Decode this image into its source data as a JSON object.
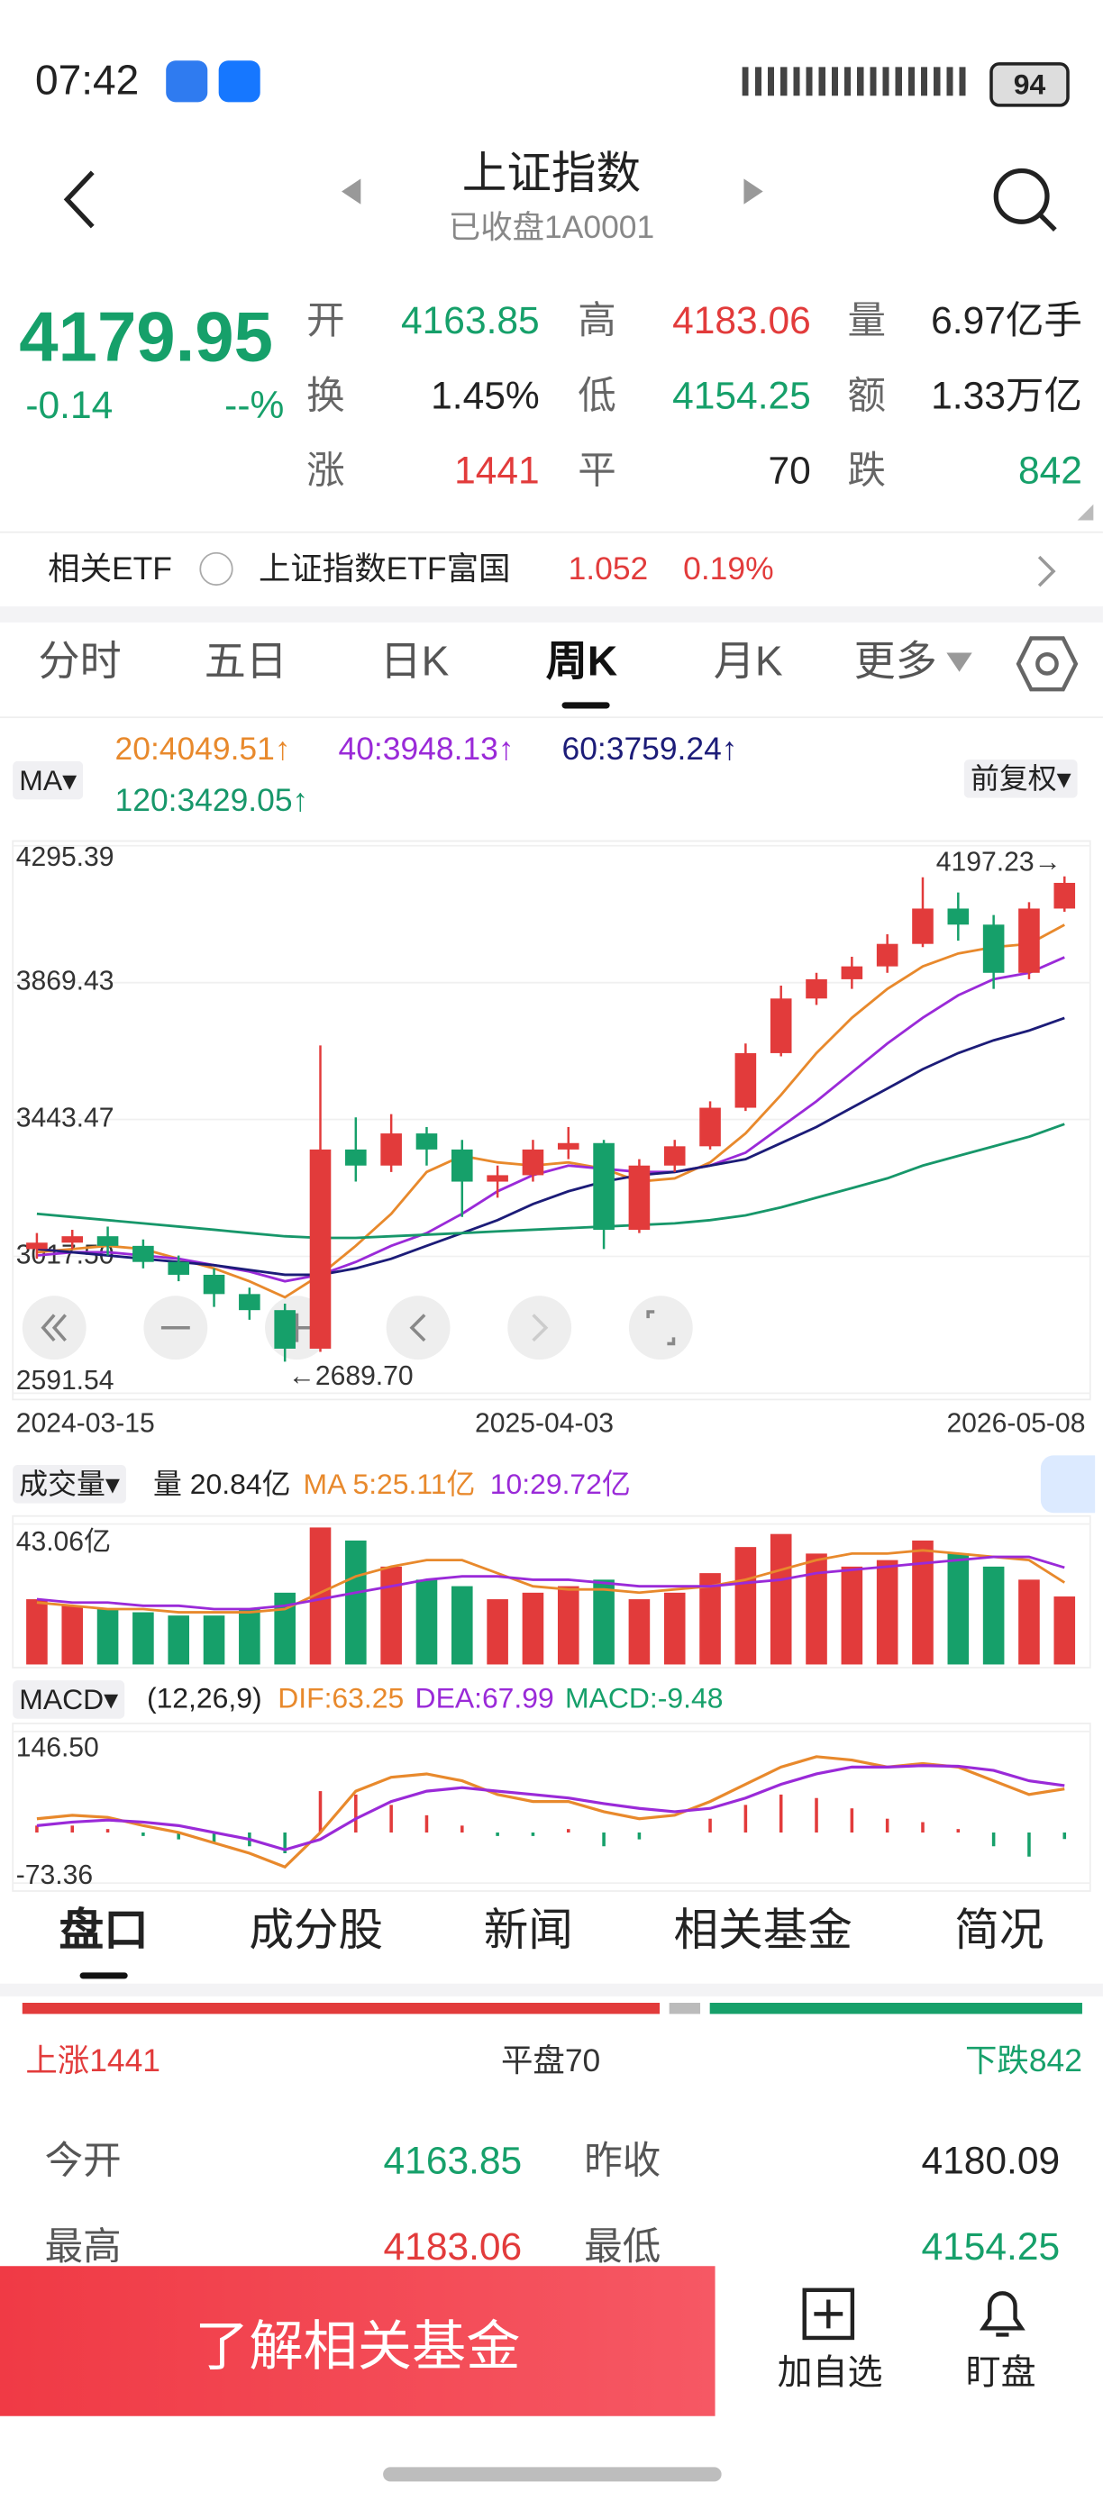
{
  "status": {
    "time": "07:42",
    "battery": "94"
  },
  "header": {
    "title": "上证指数",
    "subtitle": "已收盘1A0001"
  },
  "quote": {
    "price": "4179.95",
    "change": "-0.14",
    "change_pct": "--%",
    "stats": [
      {
        "label": "开",
        "value": "4163.85"
      },
      {
        "label": "高",
        "value": "4183.06"
      },
      {
        "label": "量",
        "value": "6.97亿手"
      },
      {
        "label": "换",
        "value": "1.45%"
      },
      {
        "label": "低",
        "value": "4154.25"
      },
      {
        "label": "额",
        "value": "1.33万亿"
      },
      {
        "label": "涨",
        "value": "1441"
      },
      {
        "label": "平",
        "value": "70"
      },
      {
        "label": "跌",
        "value": "842"
      }
    ]
  },
  "etf": {
    "label": "相关ETF",
    "name": "上证指数ETF富国",
    "price": "1.052",
    "pct": "0.19%"
  },
  "tabs": [
    "分时",
    "五日",
    "日K",
    "周K",
    "月K",
    "更多"
  ],
  "chart_data": {
    "type": "candlestick",
    "ma_selector": "MA",
    "adjust": "前复权",
    "up_color": "#e23b3b",
    "down_color": "#16a06a",
    "open": [
      3040,
      3060,
      3080,
      3050,
      3000,
      2960,
      2900,
      2850,
      2730,
      3350,
      3300,
      3400,
      3350,
      3250,
      3270,
      3350,
      3370,
      3100,
      3300,
      3360,
      3480,
      3650,
      3820,
      3880,
      3920,
      3990,
      4100,
      4050,
      3900,
      4100
    ],
    "close": [
      3060,
      3080,
      3050,
      3000,
      2960,
      2900,
      2850,
      2730,
      3350,
      3300,
      3400,
      3350,
      3250,
      3270,
      3350,
      3370,
      3100,
      3300,
      3360,
      3480,
      3650,
      3820,
      3880,
      3920,
      3990,
      4100,
      4050,
      3900,
      4100,
      4179.95
    ],
    "high": [
      3090,
      3100,
      3110,
      3070,
      3020,
      2980,
      2920,
      2870,
      3674,
      3450,
      3460,
      3420,
      3380,
      3300,
      3380,
      3420,
      3380,
      3320,
      3380,
      3500,
      3680,
      3860,
      3900,
      3950,
      4020,
      4197.23,
      4150,
      4080,
      4120,
      4200
    ],
    "low": [
      3010,
      3040,
      3020,
      2980,
      2940,
      2860,
      2820,
      2689.7,
      2720,
      3250,
      3280,
      3300,
      3140,
      3200,
      3250,
      3320,
      3040,
      3090,
      3280,
      3350,
      3470,
      3640,
      3800,
      3850,
      3900,
      3980,
      4000,
      3850,
      3880,
      4090
    ],
    "series": [
      {
        "label": "20:4049.51↑",
        "color": "#e8892c",
        "values": [
          3030,
          3040,
          3050,
          3040,
          3010,
          2980,
          2940,
          2890,
          2960,
          3050,
          3150,
          3280,
          3330,
          3310,
          3300,
          3310,
          3290,
          3250,
          3260,
          3310,
          3400,
          3520,
          3650,
          3760,
          3850,
          3920,
          3960,
          3980,
          3990,
          4049.51
        ]
      },
      {
        "label": "40:3948.13↑",
        "color": "#9a2ad8",
        "values": [
          3020,
          3030,
          3030,
          3020,
          3010,
          2990,
          2970,
          2940,
          2960,
          3000,
          3050,
          3090,
          3150,
          3220,
          3270,
          3300,
          3290,
          3280,
          3280,
          3300,
          3340,
          3420,
          3500,
          3590,
          3680,
          3760,
          3830,
          3880,
          3900,
          3948.13
        ]
      },
      {
        "label": "60:3759.24↑",
        "color": "#1c1c78",
        "values": [
          3040,
          3030,
          3020,
          3010,
          3000,
          2990,
          2975,
          2960,
          2960,
          2980,
          3010,
          3050,
          3090,
          3130,
          3180,
          3220,
          3250,
          3270,
          3280,
          3300,
          3320,
          3370,
          3420,
          3480,
          3540,
          3600,
          3650,
          3690,
          3720,
          3759.24
        ]
      },
      {
        "label": "120:3429.05↑",
        "color": "#17976a",
        "values": [
          3150,
          3140,
          3130,
          3120,
          3110,
          3100,
          3090,
          3080,
          3075,
          3075,
          3080,
          3085,
          3090,
          3095,
          3100,
          3105,
          3110,
          3115,
          3120,
          3130,
          3145,
          3170,
          3200,
          3230,
          3260,
          3300,
          3330,
          3360,
          3390,
          3429.05
        ]
      }
    ],
    "high_label": "4197.23→",
    "low_label": "←2689.70",
    "ylim": [
      2591.54,
      4295.39
    ],
    "yticks": [
      4295.39,
      3869.43,
      3443.47,
      {
        "value": 3017.5,
        "label": "3017.50"
      },
      2591.54
    ],
    "xlabels": [
      "2024-03-15",
      "2025-04-03",
      "2026-05-08"
    ],
    "grid": true,
    "volume": {
      "selector": "成交量",
      "current": "量 20.84亿",
      "ma5_label": "MA 5:25.11亿",
      "ma10_label": "10:29.72亿",
      "values": [
        20,
        18,
        17,
        16,
        15,
        15,
        17,
        22,
        42,
        38,
        30,
        26,
        24,
        20,
        22,
        24,
        26,
        20,
        22,
        28,
        36,
        40,
        34,
        30,
        32,
        38,
        34,
        30,
        26,
        20.84
      ],
      "ma5": [
        19,
        18,
        17,
        17,
        16,
        16,
        16,
        17,
        22,
        27,
        30,
        32,
        32,
        28,
        24,
        23,
        23,
        22,
        23,
        24,
        26,
        29,
        32,
        34,
        34,
        35,
        34,
        33,
        32,
        25.11
      ],
      "ma10": [
        20,
        19,
        19,
        18,
        18,
        17,
        17,
        18,
        20,
        22,
        24,
        26,
        27,
        27,
        26,
        26,
        25,
        24,
        24,
        24,
        25,
        26,
        28,
        29,
        30,
        31,
        32,
        33,
        33,
        29.72
      ],
      "ma5_color": "#e8892c",
      "ma10_color": "#9a2ad8",
      "ylim": [
        0,
        43.06
      ],
      "yticks": [
        {
          "value": 43.06,
          "label": "43.06亿"
        }
      ]
    },
    "macd": {
      "selector": "MACD",
      "params": "(12,26,9)",
      "dif_label": "DIF:63.25",
      "dea_label": "DEA:67.99",
      "macd_label": "MACD:-9.48",
      "dif_color": "#e8892c",
      "dea_color": "#9a2ad8",
      "hist": [
        10,
        10,
        5,
        -5,
        -10,
        -15,
        -20,
        -30,
        60,
        55,
        40,
        25,
        10,
        -5,
        -5,
        5,
        -20,
        -10,
        0,
        20,
        40,
        55,
        50,
        35,
        20,
        15,
        5,
        -20,
        -35,
        -9.48
      ],
      "dif": [
        20,
        25,
        22,
        10,
        0,
        -15,
        -30,
        -50,
        0,
        60,
        80,
        85,
        75,
        55,
        45,
        45,
        30,
        20,
        25,
        45,
        70,
        95,
        110,
        105,
        95,
        100,
        95,
        75,
        55,
        63.25
      ],
      "dea": [
        10,
        15,
        18,
        15,
        10,
        0,
        -10,
        -25,
        -10,
        20,
        45,
        60,
        65,
        60,
        55,
        50,
        42,
        35,
        30,
        35,
        50,
        70,
        85,
        95,
        95,
        97,
        96,
        90,
        75,
        67.99
      ],
      "ylim": [
        -73.36,
        146.5
      ],
      "yticks": [
        {
          "value": 146.5,
          "label": "146.50"
        },
        -73.36
      ]
    }
  },
  "panel_tabs": [
    "盘口",
    "成分股",
    "新闻",
    "相关基金",
    "简况"
  ],
  "breadth": {
    "items": [
      {
        "label": "上涨",
        "value": 1441,
        "color": "#e23b3b"
      },
      {
        "label": "平盘",
        "value": 70,
        "color": "#bbbbbb"
      },
      {
        "label": "下跌",
        "value": 842,
        "color": "#16a06a"
      }
    ]
  },
  "table": {
    "rows": [
      [
        "今开",
        "4163.85",
        "昨收",
        "4180.09"
      ],
      [
        "最高",
        "4183.06",
        "最低",
        "4154.25"
      ]
    ]
  },
  "bottom": {
    "button": "了解相关基金",
    "actions": [
      "加自选",
      "盯盘"
    ]
  }
}
